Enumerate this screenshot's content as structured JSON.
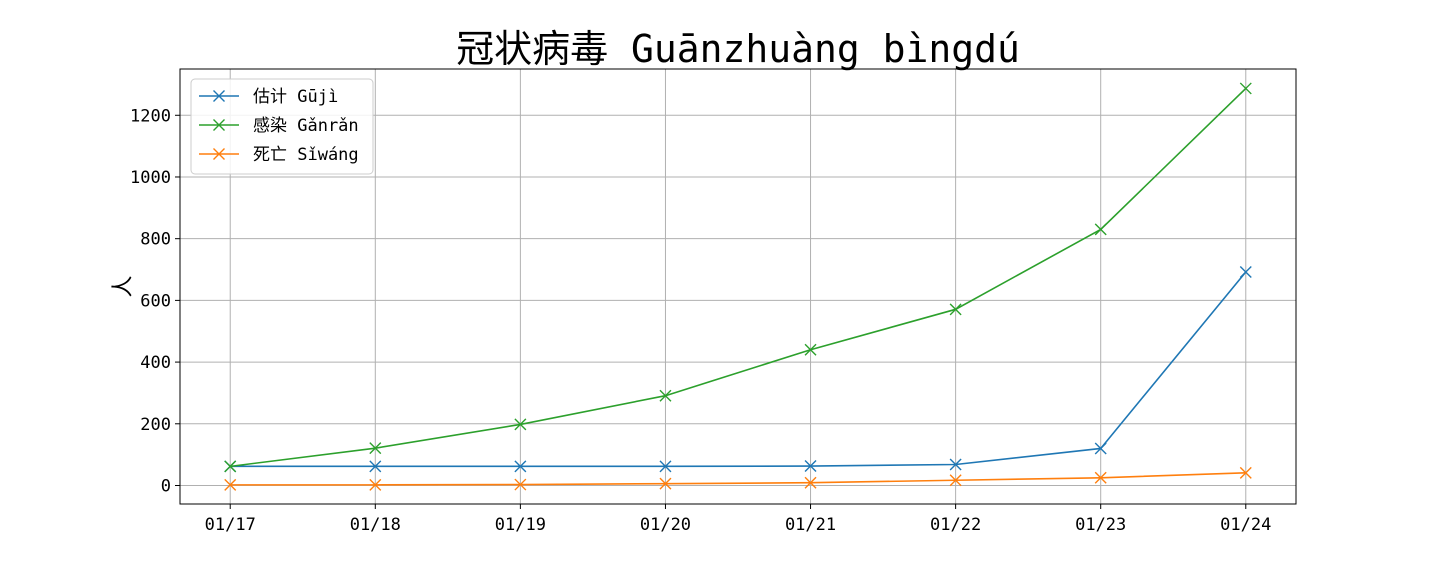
{
  "chart_data": {
    "type": "line",
    "title": "冠状病毒 Guānzhuàng bìngdú",
    "xlabel": "",
    "ylabel": "人",
    "categories": [
      "01/17",
      "01/18",
      "01/19",
      "01/20",
      "01/21",
      "01/22",
      "01/23",
      "01/24"
    ],
    "ylim": [
      -60,
      1350
    ],
    "yticks": [
      0,
      200,
      400,
      600,
      800,
      1000,
      1200
    ],
    "grid": true,
    "legend_position": "top-left",
    "marker": "x",
    "series": [
      {
        "name": "估计 Gūjì",
        "color": "#1f77b4",
        "values": [
          62,
          62,
          62,
          62,
          63,
          68,
          120,
          692
        ]
      },
      {
        "name": "感染 Gǎnrǎn",
        "color": "#2ca02c",
        "values": [
          62,
          121,
          198,
          291,
          440,
          571,
          830,
          1287
        ]
      },
      {
        "name": "死亡 Sǐwáng",
        "color": "#ff7f0e",
        "values": [
          2,
          2,
          3,
          6,
          9,
          17,
          25,
          41
        ]
      }
    ]
  }
}
